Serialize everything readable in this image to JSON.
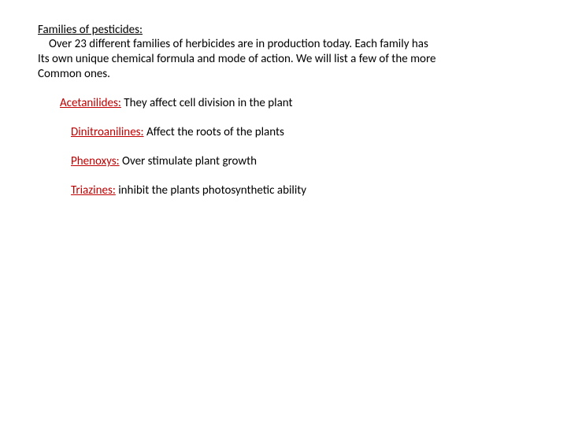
{
  "intro": {
    "heading": "Families of pesticides:",
    "line1": "Over 23 different families of herbicides are in production today.  Each family has",
    "line2": "Its own unique chemical formula and mode of action.  We will list a few of the more",
    "line3": "Common ones."
  },
  "families": [
    {
      "name": "Acetanilides:",
      "desc": "  They affect cell division in the plant"
    },
    {
      "name": "Dinitroanilines:",
      "desc": "  Affect the roots of the plants"
    },
    {
      "name": "Phenoxys:",
      "desc": "  Over stimulate plant growth"
    },
    {
      "name": "Triazines:",
      "desc": "  inhibit the plants photosynthetic ability"
    }
  ],
  "colors": {
    "text": "#000000",
    "highlight": "#c00000",
    "background": "#ffffff"
  },
  "fontsize_pt": 15
}
